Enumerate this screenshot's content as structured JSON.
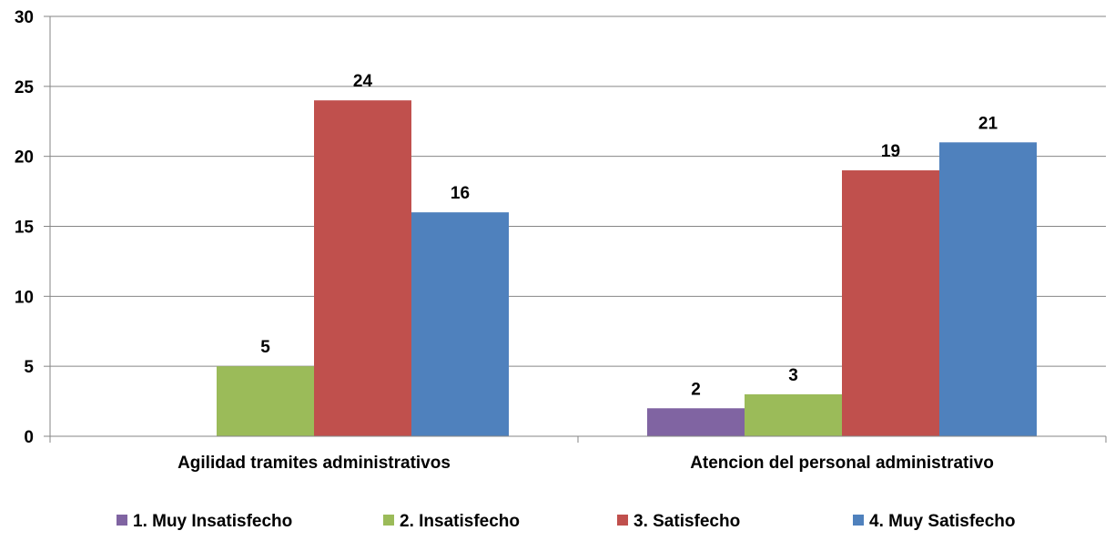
{
  "chart_data": {
    "type": "bar",
    "categories": [
      "Agilidad tramites administrativos",
      "Atencion del personal administrativo"
    ],
    "series": [
      {
        "name": "1. Muy Insatisfecho",
        "color": "#8064A2",
        "values": [
          0,
          2
        ]
      },
      {
        "name": "2. Insatisfecho",
        "color": "#9BBB59",
        "values": [
          5,
          3
        ]
      },
      {
        "name": "3. Satisfecho",
        "color": "#C0504D",
        "values": [
          24,
          19
        ]
      },
      {
        "name": "4. Muy Satisfecho",
        "color": "#4F81BD",
        "values": [
          16,
          21
        ]
      }
    ],
    "ylim": [
      0,
      30
    ],
    "yticks": [
      0,
      5,
      10,
      15,
      20,
      25,
      30
    ],
    "grid": true,
    "legend_position": "bottom",
    "data_labels": true,
    "title": "",
    "xlabel": "",
    "ylabel": ""
  }
}
